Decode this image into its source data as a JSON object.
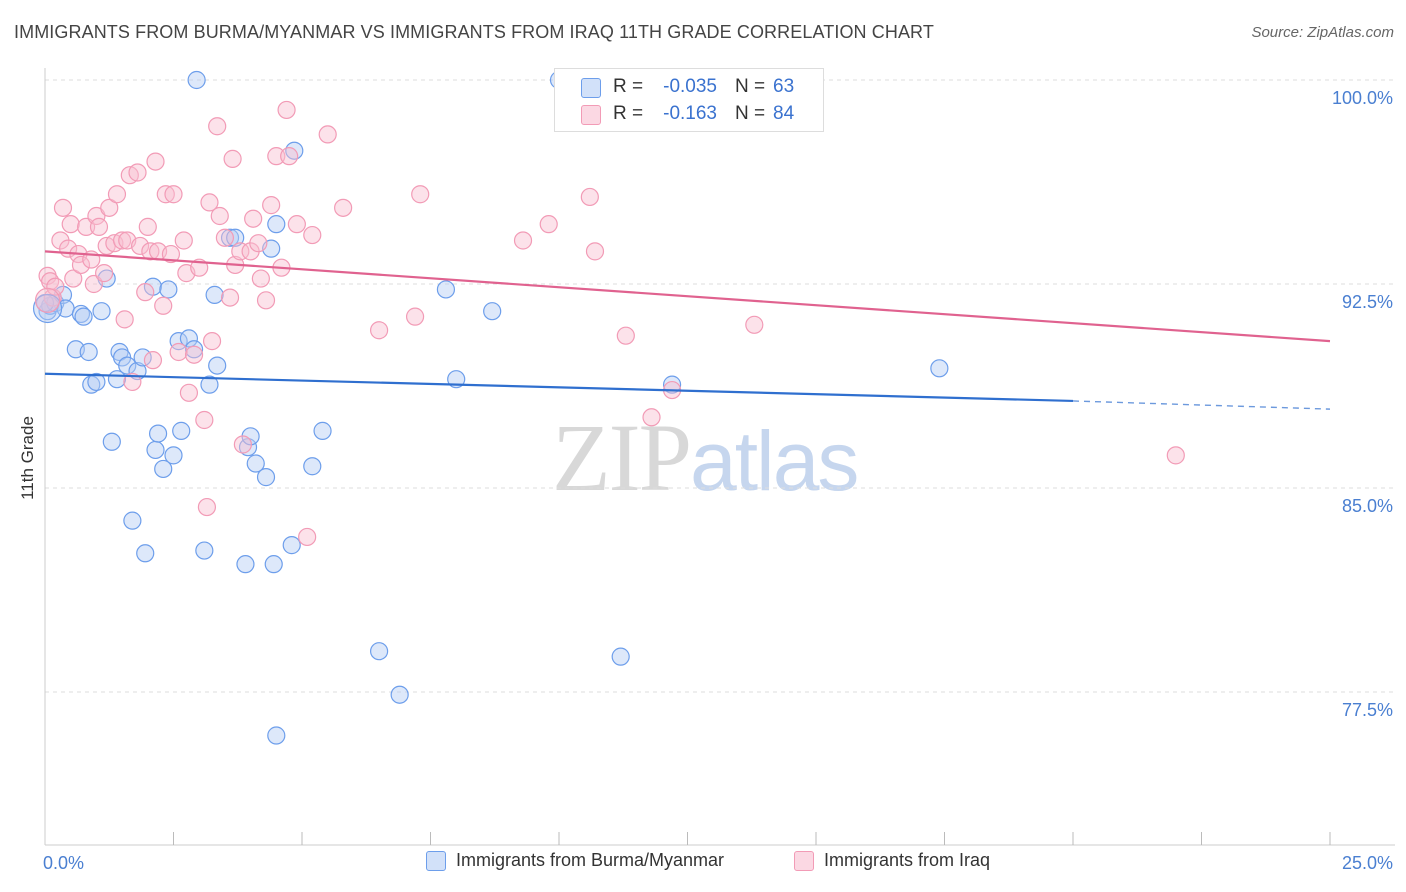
{
  "header": {
    "title": "IMMIGRANTS FROM BURMA/MYANMAR VS IMMIGRANTS FROM IRAQ 11TH GRADE CORRELATION CHART",
    "source": "Source: ZipAtlas.com"
  },
  "watermark": {
    "zip": "ZIP",
    "atlas": "atlas"
  },
  "stats": [
    {
      "r_label": "R =",
      "r_value": "-0.035",
      "n_label": "N =",
      "n_value": "63",
      "color": "#6d9eeb"
    },
    {
      "r_label": "R =",
      "r_value": "-0.163",
      "n_label": "N =",
      "n_value": "84",
      "color": "#f29bb6"
    }
  ],
  "legend": [
    {
      "label": "Immigrants from Burma/Myanmar",
      "color": "#6d9eeb"
    },
    {
      "label": "Immigrants from Iraq",
      "color": "#f29bb6"
    }
  ],
  "chart_data": {
    "type": "scatter",
    "title": "IMMIGRANTS FROM BURMA/MYANMAR VS IMMIGRANTS FROM IRAQ 11TH GRADE CORRELATION CHART",
    "xlabel": "",
    "ylabel": "11th Grade",
    "xlim": [
      0,
      25
    ],
    "ylim": [
      70.0,
      101.0
    ],
    "x_tick_labels": [
      {
        "value": 0,
        "label": "0.0%"
      },
      {
        "value": 25,
        "label": "25.0%"
      }
    ],
    "x_minor_ticks": [
      2.5,
      5.0,
      7.5,
      10.0,
      12.5,
      15.0,
      17.5,
      20.0,
      22.5,
      25.0
    ],
    "y_ticks": [
      {
        "value": 100.0,
        "label": "100.0%"
      },
      {
        "value": 92.5,
        "label": "92.5%"
      },
      {
        "value": 85.0,
        "label": "85.0%"
      },
      {
        "value": 77.5,
        "label": "77.5%"
      }
    ],
    "grid": "horizontal dashed",
    "series": [
      {
        "name": "Immigrants from Burma/Myanmar",
        "color": "#6d9eeb",
        "trend": {
          "x0": 0,
          "y0": 89.2,
          "x1": 20.0,
          "y1": 88.2,
          "dash_to": 25.0,
          "dash_y": 87.9
        },
        "points": [
          [
            0.05,
            91.5
          ],
          [
            0.1,
            91.7
          ],
          [
            0.2,
            91.8
          ],
          [
            0.35,
            92.1
          ],
          [
            0.4,
            91.6
          ],
          [
            0.6,
            90.1
          ],
          [
            0.7,
            91.4
          ],
          [
            0.75,
            91.3
          ],
          [
            0.85,
            90.0
          ],
          [
            0.9,
            88.8
          ],
          [
            1.0,
            88.9
          ],
          [
            1.1,
            91.5
          ],
          [
            1.2,
            92.7
          ],
          [
            1.3,
            86.7
          ],
          [
            1.4,
            89.0
          ],
          [
            1.45,
            90.0
          ],
          [
            1.5,
            89.8
          ],
          [
            1.6,
            89.5
          ],
          [
            1.7,
            83.8
          ],
          [
            1.8,
            89.3
          ],
          [
            1.9,
            89.8
          ],
          [
            1.95,
            82.6
          ],
          [
            2.1,
            92.4
          ],
          [
            2.15,
            86.4
          ],
          [
            2.2,
            87.0
          ],
          [
            2.3,
            85.7
          ],
          [
            2.4,
            92.3
          ],
          [
            2.5,
            86.2
          ],
          [
            2.6,
            90.4
          ],
          [
            2.65,
            87.1
          ],
          [
            2.8,
            90.5
          ],
          [
            2.9,
            90.1
          ],
          [
            2.95,
            100.0
          ],
          [
            3.1,
            82.7
          ],
          [
            3.2,
            88.8
          ],
          [
            3.3,
            92.1
          ],
          [
            3.35,
            89.5
          ],
          [
            3.6,
            94.2
          ],
          [
            3.7,
            94.2
          ],
          [
            3.9,
            82.2
          ],
          [
            3.95,
            86.5
          ],
          [
            4.0,
            86.9
          ],
          [
            4.1,
            85.9
          ],
          [
            4.3,
            85.4
          ],
          [
            4.4,
            93.8
          ],
          [
            4.45,
            82.2
          ],
          [
            4.5,
            94.7
          ],
          [
            4.8,
            82.9
          ],
          [
            4.85,
            97.4
          ],
          [
            5.2,
            85.8
          ],
          [
            5.4,
            87.1
          ],
          [
            6.5,
            79.0
          ],
          [
            6.9,
            77.4
          ],
          [
            4.5,
            75.9
          ],
          [
            7.8,
            92.3
          ],
          [
            8.0,
            89.0
          ],
          [
            8.7,
            91.5
          ],
          [
            10.0,
            100.0
          ],
          [
            11.2,
            78.8
          ],
          [
            12.2,
            88.8
          ],
          [
            17.4,
            89.4
          ],
          [
            13.0,
            100.0
          ],
          [
            0.0,
            91.8
          ]
        ]
      },
      {
        "name": "Immigrants from Iraq",
        "color": "#f29bb6",
        "trend": {
          "x0": 0,
          "y0": 93.7,
          "x1": 25.0,
          "y1": 90.4
        },
        "points": [
          [
            0.05,
            92.8
          ],
          [
            0.1,
            92.6
          ],
          [
            0.15,
            92.0
          ],
          [
            0.2,
            92.4
          ],
          [
            0.3,
            94.1
          ],
          [
            0.35,
            95.3
          ],
          [
            0.45,
            93.8
          ],
          [
            0.5,
            94.7
          ],
          [
            0.55,
            92.7
          ],
          [
            0.65,
            93.6
          ],
          [
            0.7,
            93.2
          ],
          [
            0.8,
            94.6
          ],
          [
            0.9,
            93.4
          ],
          [
            0.95,
            92.5
          ],
          [
            1.0,
            95.0
          ],
          [
            1.05,
            94.6
          ],
          [
            1.15,
            92.9
          ],
          [
            1.2,
            93.9
          ],
          [
            1.25,
            95.3
          ],
          [
            1.35,
            94.0
          ],
          [
            1.4,
            95.8
          ],
          [
            1.5,
            94.1
          ],
          [
            1.55,
            91.2
          ],
          [
            1.6,
            94.1
          ],
          [
            1.65,
            96.5
          ],
          [
            1.7,
            88.9
          ],
          [
            1.8,
            96.6
          ],
          [
            1.85,
            93.9
          ],
          [
            1.95,
            92.2
          ],
          [
            2.0,
            94.6
          ],
          [
            2.05,
            93.7
          ],
          [
            2.1,
            89.7
          ],
          [
            2.15,
            97.0
          ],
          [
            2.2,
            93.7
          ],
          [
            2.3,
            91.7
          ],
          [
            2.35,
            95.8
          ],
          [
            2.45,
            93.6
          ],
          [
            2.5,
            95.8
          ],
          [
            2.6,
            90.0
          ],
          [
            2.7,
            94.1
          ],
          [
            2.75,
            92.9
          ],
          [
            2.8,
            88.5
          ],
          [
            2.9,
            89.9
          ],
          [
            3.0,
            93.1
          ],
          [
            3.1,
            87.5
          ],
          [
            3.15,
            84.3
          ],
          [
            3.2,
            95.5
          ],
          [
            3.25,
            90.4
          ],
          [
            3.35,
            98.3
          ],
          [
            3.4,
            95.0
          ],
          [
            3.5,
            94.2
          ],
          [
            3.6,
            92.0
          ],
          [
            3.65,
            97.1
          ],
          [
            3.7,
            93.2
          ],
          [
            3.8,
            93.7
          ],
          [
            3.85,
            86.6
          ],
          [
            4.0,
            93.7
          ],
          [
            4.05,
            94.9
          ],
          [
            4.15,
            94.0
          ],
          [
            4.2,
            92.7
          ],
          [
            4.3,
            91.9
          ],
          [
            4.4,
            95.4
          ],
          [
            4.5,
            97.2
          ],
          [
            4.6,
            93.1
          ],
          [
            4.7,
            98.9
          ],
          [
            4.75,
            97.2
          ],
          [
            4.9,
            94.7
          ],
          [
            5.1,
            83.2
          ],
          [
            5.2,
            94.3
          ],
          [
            5.5,
            98.0
          ],
          [
            5.8,
            95.3
          ],
          [
            6.5,
            90.8
          ],
          [
            7.2,
            91.3
          ],
          [
            7.3,
            95.8
          ],
          [
            9.3,
            94.1
          ],
          [
            9.8,
            94.7
          ],
          [
            10.6,
            95.7
          ],
          [
            10.7,
            93.7
          ],
          [
            11.3,
            90.6
          ],
          [
            11.8,
            87.6
          ],
          [
            12.2,
            88.6
          ],
          [
            13.8,
            91.0
          ],
          [
            14.2,
            100.0
          ],
          [
            22.0,
            86.2
          ]
        ]
      }
    ]
  }
}
